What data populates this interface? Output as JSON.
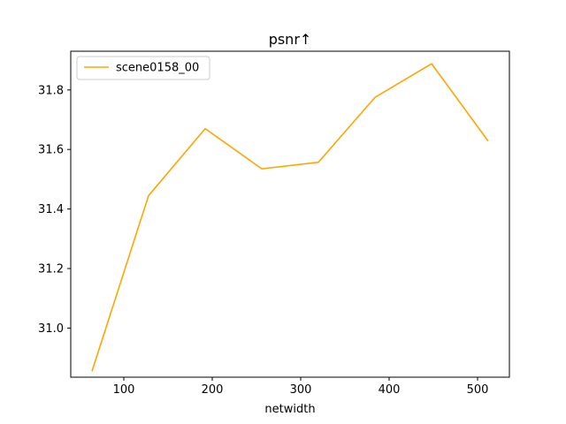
{
  "chart_data": {
    "type": "line",
    "title": "psnr↑",
    "xlabel": "netwidth",
    "ylabel": "",
    "xlim": [
      40,
      536
    ],
    "ylim": [
      30.835,
      31.93
    ],
    "xticks": [
      100,
      200,
      300,
      400,
      500
    ],
    "yticks": [
      31.0,
      31.2,
      31.4,
      31.6,
      31.8
    ],
    "xtick_labels": [
      "100",
      "200",
      "300",
      "400",
      "500"
    ],
    "ytick_labels": [
      "31.0",
      "31.2",
      "31.4",
      "31.6",
      "31.8"
    ],
    "grid": false,
    "legend_position": "upper left",
    "series": [
      {
        "name": "scene0158_00",
        "color": "#ffa500",
        "x": [
          64,
          128,
          192,
          256,
          320,
          384,
          448,
          512
        ],
        "y": [
          30.855,
          31.445,
          31.67,
          31.535,
          31.557,
          31.775,
          31.888,
          31.628
        ]
      }
    ]
  }
}
